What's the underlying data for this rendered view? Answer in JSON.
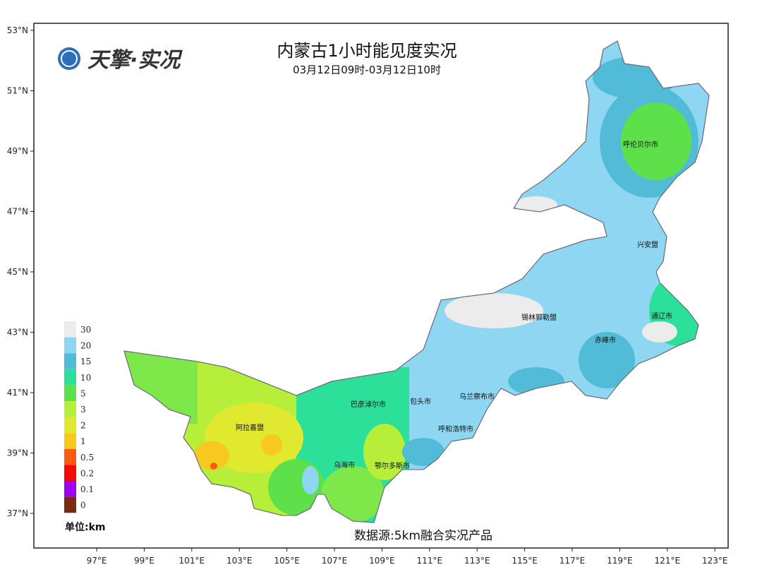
{
  "logo": {
    "text": "天擎·实况"
  },
  "title": "内蒙古1小时能见度实况",
  "subtitle": "03月12日09时-03月12日10时",
  "source": "数据源:5km融合实况产品",
  "lat_ticks": [
    "53°N",
    "51°N",
    "49°N",
    "47°N",
    "45°N",
    "43°N",
    "41°N",
    "39°N",
    "37°N"
  ],
  "lon_ticks": [
    "97°E",
    "99°E",
    "101°E",
    "103°E",
    "105°E",
    "107°E",
    "109°E",
    "111°E",
    "113°E",
    "115°E",
    "117°E",
    "119°E",
    "121°E",
    "123°E"
  ],
  "legend": {
    "unit": "单位:km",
    "items": [
      {
        "label": "30",
        "color": "#ececec"
      },
      {
        "label": "20",
        "color": "#8fd6f2"
      },
      {
        "label": "15",
        "color": "#52bcd8"
      },
      {
        "label": "10",
        "color": "#2de09a"
      },
      {
        "label": "5",
        "color": "#5ee04a"
      },
      {
        "label": "3",
        "color": "#b6ee3a"
      },
      {
        "label": "2",
        "color": "#e0e830"
      },
      {
        "label": "1",
        "color": "#f7c81e"
      },
      {
        "label": "0.5",
        "color": "#fa5a14"
      },
      {
        "label": "0.2",
        "color": "#f50a0a"
      },
      {
        "label": "0.1",
        "color": "#a000f0"
      },
      {
        "label": "0",
        "color": "#7a2a10"
      }
    ]
  },
  "cities": [
    "呼伦贝尔市",
    "兴安盟",
    "通辽市",
    "赤峰市",
    "锡林郭勒盟",
    "乌兰察布市",
    "包头市",
    "巴彦淖尔市",
    "呼和浩特市",
    "阿拉善盟",
    "乌海市",
    "鄂尔多斯市"
  ]
}
